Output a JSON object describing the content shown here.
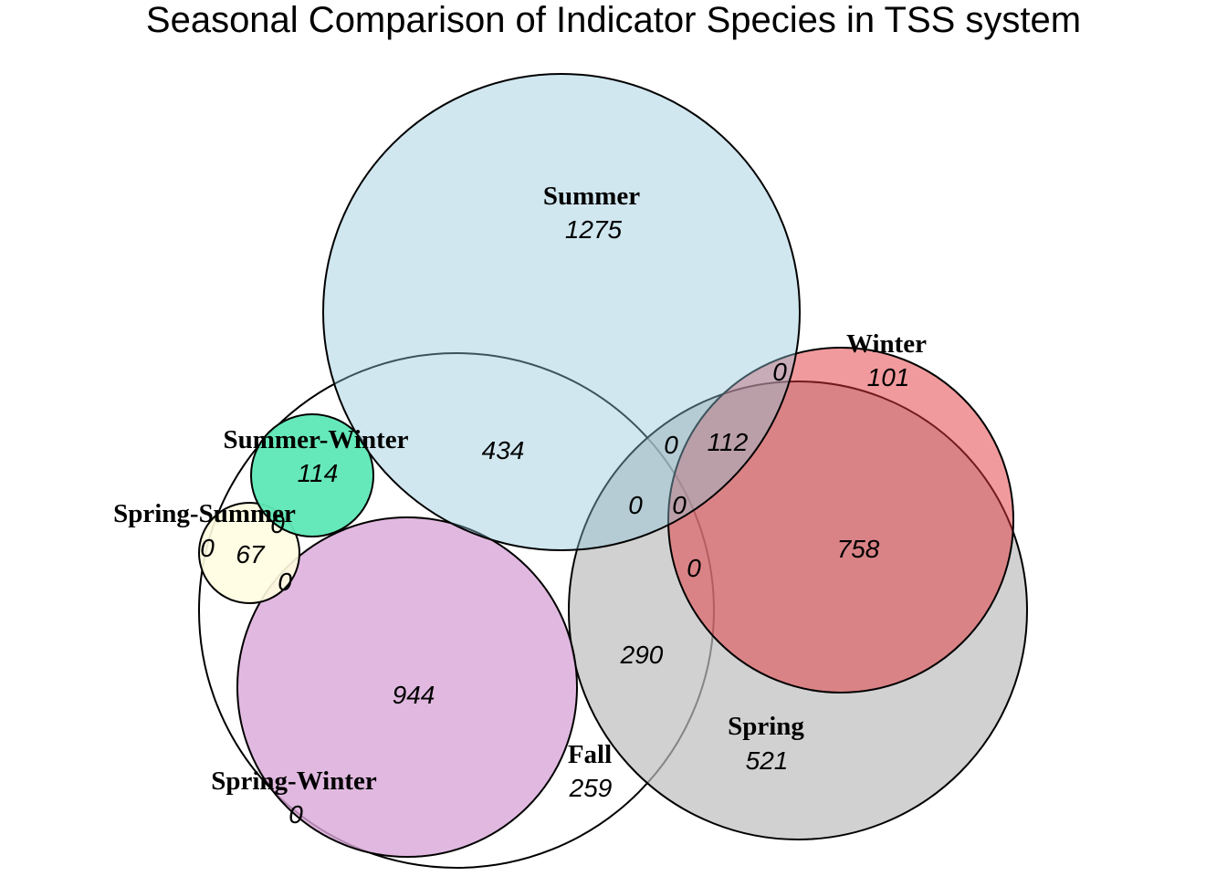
{
  "title": "Seasonal Comparison of Indicator Species in TSS system",
  "sets": [
    {
      "name": "Fall",
      "color": "#ffffff",
      "count": "259"
    },
    {
      "name": "Spring",
      "color": "#bdbdbd",
      "count": "521"
    },
    {
      "name": "Winter",
      "color": "#e3363c",
      "count": "101"
    },
    {
      "name": "Summer",
      "color": "#8ec6db",
      "count": "1275"
    },
    {
      "name": "Spring-Summer",
      "color": "#fffde0",
      "count": "67"
    },
    {
      "name": "Summer-Winter",
      "color": "#5ee8b6",
      "count": "114"
    },
    {
      "name": "Spring-Winter",
      "color": "#d9a8d8",
      "count": "0"
    }
  ],
  "regions": [
    {
      "sets": [
        "Fall",
        "Summer"
      ],
      "count": "434"
    },
    {
      "sets": [
        "Fall",
        "Spring-Winter"
      ],
      "count": "944"
    },
    {
      "sets": [
        "Fall",
        "Spring"
      ],
      "count": "290"
    },
    {
      "sets": [
        "Spring",
        "Winter"
      ],
      "count": "758"
    },
    {
      "sets": [
        "Spring",
        "Winter",
        "Summer"
      ],
      "count": "112"
    },
    {
      "sets": [
        "Winter",
        "Summer"
      ],
      "count": "0"
    },
    {
      "sets": [
        "Spring",
        "Summer"
      ],
      "count": "0"
    },
    {
      "sets": [
        "Fall",
        "Spring",
        "Summer"
      ],
      "count": "0"
    },
    {
      "sets": [
        "Fall",
        "Spring",
        "Winter",
        "Summer"
      ],
      "count": "0"
    },
    {
      "sets": [
        "Fall",
        "Spring",
        "Winter"
      ],
      "count": "0"
    },
    {
      "sets": [
        "Summer-Winter",
        "Spring-Summer"
      ],
      "count": "0"
    },
    {
      "sets": [
        "Spring-Summer",
        "Spring-Winter"
      ],
      "count": "0"
    },
    {
      "sets": [
        "Spring-Summer",
        "outer"
      ],
      "count": "0"
    }
  ]
}
